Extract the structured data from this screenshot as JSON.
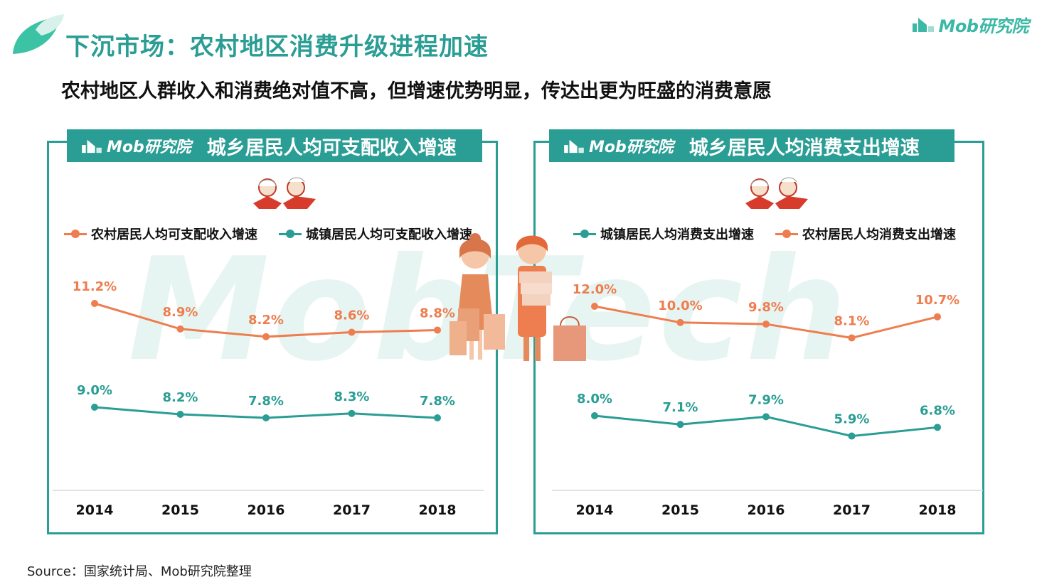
{
  "page": {
    "title": "下沉市场：农村地区消费升级进程加速",
    "subtitle": "农村地区人群收入和消费绝对值不高，但增速优势明显，传达出更为旺盛的消费意愿",
    "brand": "Mob研究院",
    "watermark": "MobTech",
    "source": "Source：国家统计局、Mob研究院整理"
  },
  "panels": [
    {
      "header_brand": "Mob研究院",
      "header_title": "城乡居民人均可支配收入增速",
      "legend": [
        "农村居民人均可支配收入增速",
        "城镇居民人均可支配收入增速"
      ]
    },
    {
      "header_brand": "Mob研究院",
      "header_title": "城乡居民人均消费支出增速",
      "legend": [
        "城镇居民人均消费支出增速",
        "农村居民人均消费支出增速"
      ]
    }
  ],
  "colors": {
    "teal": "#2a9d94",
    "orange": "#ee7d4f",
    "axis": "#d9d9d9"
  },
  "chart_data": [
    {
      "type": "line",
      "title": "城乡居民人均可支配收入增速",
      "categories": [
        "2014",
        "2015",
        "2016",
        "2017",
        "2018"
      ],
      "series": [
        {
          "name": "农村居民人均可支配收入增速",
          "color": "#ee7d4f",
          "values": [
            11.2,
            8.9,
            8.2,
            8.6,
            8.8
          ],
          "labels": [
            "11.2%",
            "8.9%",
            "8.2%",
            "8.6%",
            "8.8%"
          ]
        },
        {
          "name": "城镇居民人均可支配收入增速",
          "color": "#2a9d94",
          "values": [
            9.0,
            8.2,
            7.8,
            8.3,
            7.8
          ],
          "labels": [
            "9.0%",
            "8.2%",
            "7.8%",
            "8.3%",
            "7.8%"
          ]
        }
      ],
      "legend_position": "top"
    },
    {
      "type": "line",
      "title": "城乡居民人均消费支出增速",
      "categories": [
        "2014",
        "2015",
        "2016",
        "2017",
        "2018"
      ],
      "series": [
        {
          "name": "城镇居民人均消费支出增速",
          "color": "#2a9d94",
          "values": [
            8.0,
            7.1,
            7.9,
            5.9,
            6.8
          ],
          "labels": [
            "8.0%",
            "7.1%",
            "7.9%",
            "5.9%",
            "6.8%"
          ]
        },
        {
          "name": "农村居民人均消费支出增速",
          "color": "#ee7d4f",
          "values": [
            12.0,
            10.0,
            9.8,
            8.1,
            10.7
          ],
          "labels": [
            "12.0%",
            "10.0%",
            "9.8%",
            "8.1%",
            "10.7%"
          ]
        }
      ],
      "legend_position": "top"
    }
  ]
}
